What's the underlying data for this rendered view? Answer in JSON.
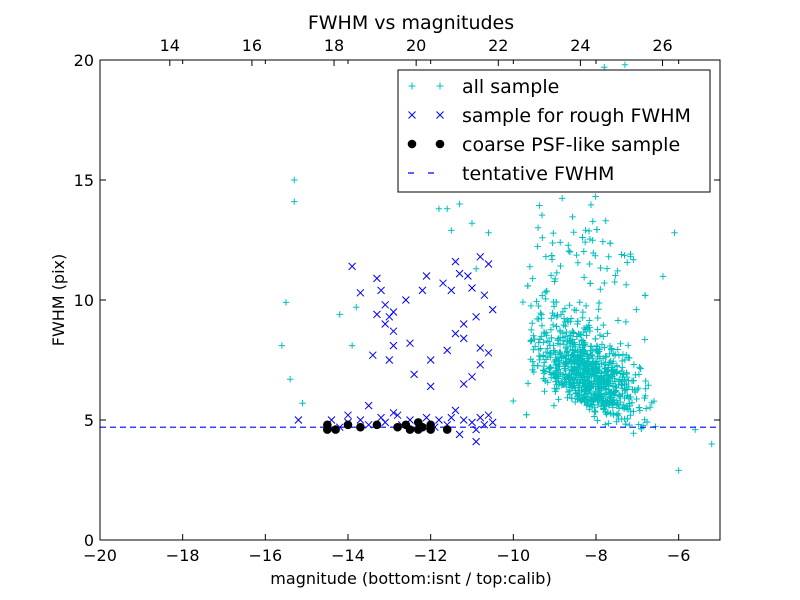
{
  "chart_data": {
    "type": "scatter",
    "title": "FWHM vs magnitudes",
    "xlabel": "magnitude (bottom:isnt / top:calib)",
    "ylabel": "FWHM (pix)",
    "xlim": [
      -20,
      -5
    ],
    "ylim": [
      0,
      20
    ],
    "top_xlim": [
      12.3,
      27.4
    ],
    "x_ticks": [
      -20,
      -18,
      -16,
      -14,
      -12,
      -10,
      -8,
      -6
    ],
    "x_tick_labels": [
      "−20",
      "−18",
      "−16",
      "−14",
      "−12",
      "−10",
      "−8",
      "−6"
    ],
    "y_ticks": [
      0,
      5,
      10,
      15,
      20
    ],
    "y_tick_labels": [
      "0",
      "5",
      "10",
      "15",
      "20"
    ],
    "top_ticks": [
      14,
      16,
      18,
      20,
      22,
      24,
      26
    ],
    "top_tick_labels": [
      "14",
      "16",
      "18",
      "20",
      "22",
      "24",
      "26"
    ],
    "grid": false,
    "legend_position": "top-right",
    "series": [
      {
        "name": "all sample",
        "marker": "plus",
        "color": "#00bfbf",
        "cluster": {
          "x_center": -8.2,
          "x_spread": 1.0,
          "x_min": -10.8,
          "x_max": -5.0,
          "y_min": 3.0,
          "y_max": 20.0,
          "count": 1100
        },
        "points": [
          [
            -15.3,
            15.0
          ],
          [
            -15.3,
            14.1
          ],
          [
            -15.5,
            9.9
          ],
          [
            -15.6,
            8.1
          ],
          [
            -15.4,
            6.7
          ],
          [
            -15.1,
            5.7
          ],
          [
            -14.2,
            9.4
          ],
          [
            -13.8,
            9.7
          ],
          [
            -13.9,
            8.1
          ],
          [
            -12.7,
            15.6
          ],
          [
            -12.3,
            15.1
          ],
          [
            -11.6,
            13.8
          ],
          [
            -11.8,
            13.8
          ],
          [
            -11.3,
            14.0
          ],
          [
            -11.0,
            13.2
          ],
          [
            -10.6,
            12.8
          ],
          [
            -10.9,
            11.3
          ],
          [
            -11.5,
            12.9
          ],
          [
            -6.1,
            12.8
          ],
          [
            -6.0,
            2.9
          ],
          [
            -5.2,
            4.0
          ],
          [
            -5.6,
            4.6
          ],
          [
            -7.8,
            19.7
          ],
          [
            -7.3,
            19.8
          ]
        ]
      },
      {
        "name": "sample for rough FWHM",
        "marker": "x",
        "color": "#0000ff",
        "points": [
          [
            -15.2,
            5.0
          ],
          [
            -13.9,
            11.4
          ],
          [
            -13.7,
            10.3
          ],
          [
            -13.3,
            10.9
          ],
          [
            -13.2,
            10.4
          ],
          [
            -13.1,
            9.8
          ],
          [
            -13.0,
            9.3
          ],
          [
            -12.9,
            9.5
          ],
          [
            -13.3,
            9.4
          ],
          [
            -13.1,
            9.0
          ],
          [
            -12.9,
            8.7
          ],
          [
            -12.6,
            10.0
          ],
          [
            -12.1,
            11.0
          ],
          [
            -11.7,
            10.7
          ],
          [
            -11.5,
            10.4
          ],
          [
            -11.4,
            11.6
          ],
          [
            -11.3,
            11.1
          ],
          [
            -11.1,
            11.0
          ],
          [
            -11.0,
            10.5
          ],
          [
            -10.8,
            11.8
          ],
          [
            -10.6,
            11.5
          ],
          [
            -10.7,
            10.2
          ],
          [
            -10.5,
            9.6
          ],
          [
            -10.9,
            9.3
          ],
          [
            -11.2,
            9.0
          ],
          [
            -11.4,
            8.6
          ],
          [
            -11.6,
            7.9
          ],
          [
            -11.2,
            8.4
          ],
          [
            -10.8,
            8.0
          ],
          [
            -10.6,
            7.8
          ],
          [
            -10.8,
            7.3
          ],
          [
            -11.0,
            6.8
          ],
          [
            -11.2,
            6.5
          ],
          [
            -12.5,
            8.2
          ],
          [
            -12.0,
            7.5
          ],
          [
            -12.2,
            10.4
          ],
          [
            -12.9,
            8.1
          ],
          [
            -13.4,
            7.7
          ],
          [
            -13.0,
            7.5
          ],
          [
            -12.4,
            6.9
          ],
          [
            -12.0,
            6.4
          ],
          [
            -13.5,
            5.6
          ],
          [
            -14.4,
            5.0
          ],
          [
            -14.0,
            4.9
          ],
          [
            -13.7,
            5.0
          ],
          [
            -13.2,
            5.1
          ],
          [
            -12.8,
            5.2
          ],
          [
            -12.5,
            5.0
          ],
          [
            -12.1,
            5.1
          ],
          [
            -11.8,
            5.0
          ],
          [
            -11.5,
            5.1
          ],
          [
            -11.2,
            5.0
          ],
          [
            -11.0,
            4.9
          ],
          [
            -10.8,
            5.1
          ],
          [
            -10.6,
            5.2
          ],
          [
            -10.9,
            4.6
          ],
          [
            -11.3,
            4.4
          ],
          [
            -10.7,
            4.8
          ],
          [
            -10.5,
            4.9
          ],
          [
            -11.6,
            4.8
          ],
          [
            -11.9,
            4.7
          ],
          [
            -12.3,
            4.7
          ],
          [
            -12.7,
            4.8
          ],
          [
            -13.1,
            4.9
          ],
          [
            -13.5,
            4.8
          ],
          [
            -14.2,
            4.7
          ],
          [
            -14.0,
            5.2
          ],
          [
            -12.9,
            5.3
          ],
          [
            -11.4,
            5.4
          ],
          [
            -10.9,
            4.1
          ]
        ]
      },
      {
        "name": "coarse PSF-like sample",
        "marker": "dot",
        "color": "#000000",
        "points": [
          [
            -14.5,
            4.8
          ],
          [
            -14.5,
            4.6
          ],
          [
            -14.3,
            4.6
          ],
          [
            -14.0,
            4.8
          ],
          [
            -13.7,
            4.7
          ],
          [
            -13.3,
            4.8
          ],
          [
            -12.8,
            4.7
          ],
          [
            -12.6,
            4.8
          ],
          [
            -12.5,
            4.6
          ],
          [
            -12.3,
            4.9
          ],
          [
            -12.3,
            4.6
          ],
          [
            -12.2,
            4.7
          ],
          [
            -12.0,
            4.6
          ],
          [
            -12.0,
            4.8
          ],
          [
            -11.6,
            4.6
          ]
        ]
      },
      {
        "name": "tentative FWHM",
        "marker": "dashed-line",
        "color": "#0000ff",
        "y": 4.7
      }
    ]
  }
}
